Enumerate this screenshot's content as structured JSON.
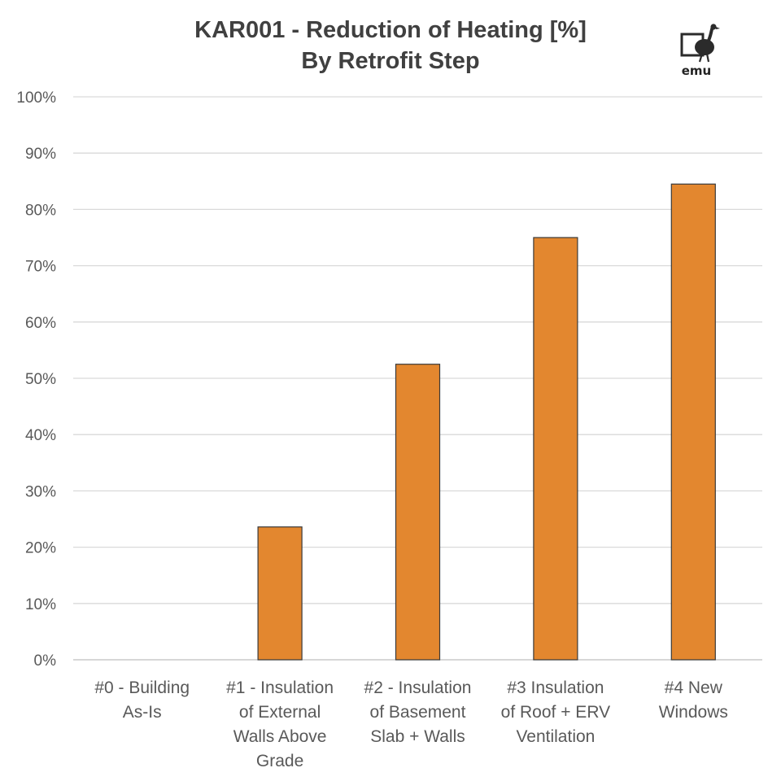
{
  "chart_data": {
    "type": "bar",
    "title": [
      "KAR001 - Reduction of Heating [%]",
      "By Retrofit Step"
    ],
    "categories": [
      [
        "#0 - Building",
        "As-Is"
      ],
      [
        "#1 - Insulation",
        "of External",
        "Walls Above",
        "Grade"
      ],
      [
        "#2 - Insulation",
        "of Basement",
        "Slab + Walls"
      ],
      [
        "#3 Insulation",
        "of Roof + ERV",
        "Ventilation"
      ],
      [
        "#4 New",
        "Windows"
      ]
    ],
    "values": [
      0,
      23.6,
      52.5,
      75.0,
      84.5
    ],
    "ylim": [
      0,
      100
    ],
    "yticks": [
      0,
      10,
      20,
      30,
      40,
      50,
      60,
      70,
      80,
      90,
      100
    ],
    "ytick_labels": [
      "0%",
      "10%",
      "20%",
      "30%",
      "40%",
      "50%",
      "60%",
      "70%",
      "80%",
      "90%",
      "100%"
    ],
    "xlabel": "",
    "ylabel": "",
    "grid": true,
    "bar_color": "#E3872F",
    "bar_edge_color": "#3a3a3a",
    "grid_color": "#d9d9d9"
  },
  "logo": {
    "text": "emu",
    "icon": "emu-bird-icon"
  }
}
